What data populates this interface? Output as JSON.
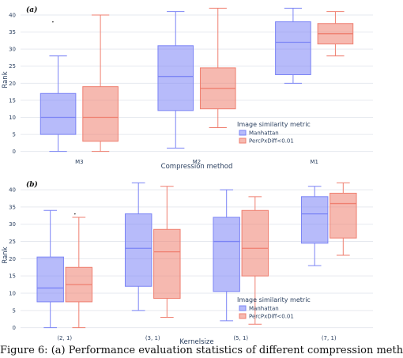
{
  "colors": {
    "series_a": "#7b84f5",
    "series_b": "#ef7f70"
  },
  "caption": "Figure 6: (a) Performance evaluation statistics of different compression meth",
  "chart_data": [
    {
      "type": "box",
      "panel_label": "(a)",
      "title": "",
      "xlabel": "Compression method",
      "ylabel": "Rank",
      "ylim": [
        -1,
        43
      ],
      "yticks": [
        0,
        5,
        10,
        15,
        20,
        25,
        30,
        35,
        40
      ],
      "categories": [
        "M3",
        "M2",
        "M1"
      ],
      "grid": true,
      "legend": {
        "title": "Image similarity metric",
        "placement": "bottom-right"
      },
      "series": [
        {
          "name": "Manhattan",
          "color": "#7b84f5",
          "boxes": [
            {
              "min": 0,
              "q1": 5,
              "median": 10,
              "q3": 17,
              "max": 28,
              "outliers": [
                38
              ]
            },
            {
              "min": 1,
              "q1": 12,
              "median": 22,
              "q3": 31,
              "max": 41,
              "outliers": []
            },
            {
              "min": 20,
              "q1": 22.5,
              "median": 32,
              "q3": 38,
              "max": 42,
              "outliers": []
            }
          ]
        },
        {
          "name": "PercPxDiff<0.01",
          "color": "#ef7f70",
          "boxes": [
            {
              "min": 0,
              "q1": 3,
              "median": 10,
              "q3": 19,
              "max": 40,
              "outliers": []
            },
            {
              "min": 7,
              "q1": 12.5,
              "median": 18.5,
              "q3": 24.5,
              "max": 42,
              "outliers": []
            },
            {
              "min": 28,
              "q1": 31.5,
              "median": 34.5,
              "q3": 37.5,
              "max": 41,
              "outliers": []
            }
          ]
        }
      ]
    },
    {
      "type": "box",
      "panel_label": "(b)",
      "title": "",
      "xlabel": "Kernelsize",
      "ylabel": "Rank",
      "ylim": [
        -1,
        43
      ],
      "yticks": [
        0,
        5,
        10,
        15,
        20,
        25,
        30,
        35,
        40
      ],
      "categories": [
        "(2, 1)",
        "(3, 1)",
        "(5, 1)",
        "(7, 1)"
      ],
      "grid": true,
      "legend": {
        "title": "Image similarity metric",
        "placement": "bottom-right"
      },
      "series": [
        {
          "name": "Manhattan",
          "color": "#7b84f5",
          "boxes": [
            {
              "min": 0,
              "q1": 7.5,
              "median": 11.5,
              "q3": 20.5,
              "max": 34,
              "outliers": []
            },
            {
              "min": 5,
              "q1": 12,
              "median": 23,
              "q3": 33,
              "max": 42,
              "outliers": []
            },
            {
              "min": 2,
              "q1": 10.5,
              "median": 25,
              "q3": 32,
              "max": 40,
              "outliers": []
            },
            {
              "min": 18,
              "q1": 24.5,
              "median": 33,
              "q3": 38,
              "max": 41,
              "outliers": []
            }
          ]
        },
        {
          "name": "PercPxDiff<0.01",
          "color": "#ef7f70",
          "boxes": [
            {
              "min": 0,
              "q1": 7.5,
              "median": 12.5,
              "q3": 17.5,
              "max": 32,
              "outliers": [
                33
              ]
            },
            {
              "min": 3,
              "q1": 8.5,
              "median": 22,
              "q3": 28.5,
              "max": 41,
              "outliers": []
            },
            {
              "min": 1,
              "q1": 15,
              "median": 23,
              "q3": 34,
              "max": 38,
              "outliers": []
            },
            {
              "min": 21,
              "q1": 26,
              "median": 36,
              "q3": 39,
              "max": 42,
              "outliers": []
            }
          ]
        }
      ]
    }
  ]
}
